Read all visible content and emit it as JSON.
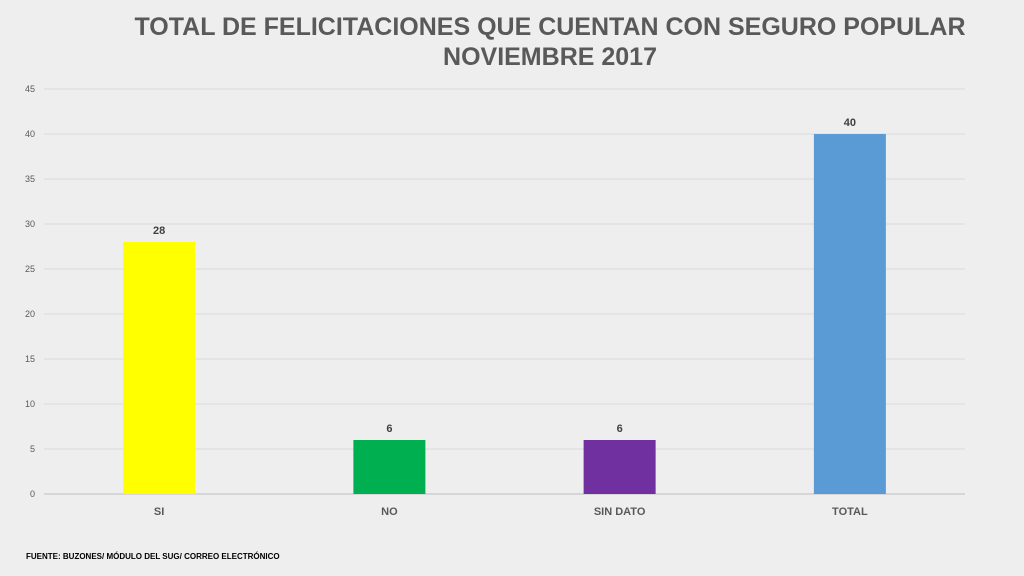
{
  "title": {
    "line1": "TOTAL DE FELICITACIONES QUE CUENTAN  CON SEGURO POPULAR",
    "line2": "NOVIEMBRE 2017"
  },
  "source": "FUENTE: BUZONES/ MÓDULO DEL SUG/ CORREO ELECTRÓNICO",
  "chart_data": {
    "type": "bar",
    "title": "TOTAL DE FELICITACIONES QUE CUENTAN  CON SEGURO POPULAR NOVIEMBRE 2017",
    "categories": [
      "SI",
      "NO",
      "SIN DATO",
      "TOTAL"
    ],
    "values": [
      28,
      6,
      6,
      40
    ],
    "data_labels": [
      "28",
      "6",
      "6",
      "40"
    ],
    "colors": [
      "#ffff00",
      "#00b050",
      "#7030a0",
      "#5b9bd5"
    ],
    "ylim": [
      0,
      45
    ],
    "yticks": [
      0,
      5,
      10,
      15,
      20,
      25,
      30,
      35,
      40,
      45
    ],
    "xlabel": "",
    "ylabel": "",
    "grid": true,
    "legend": "none"
  }
}
